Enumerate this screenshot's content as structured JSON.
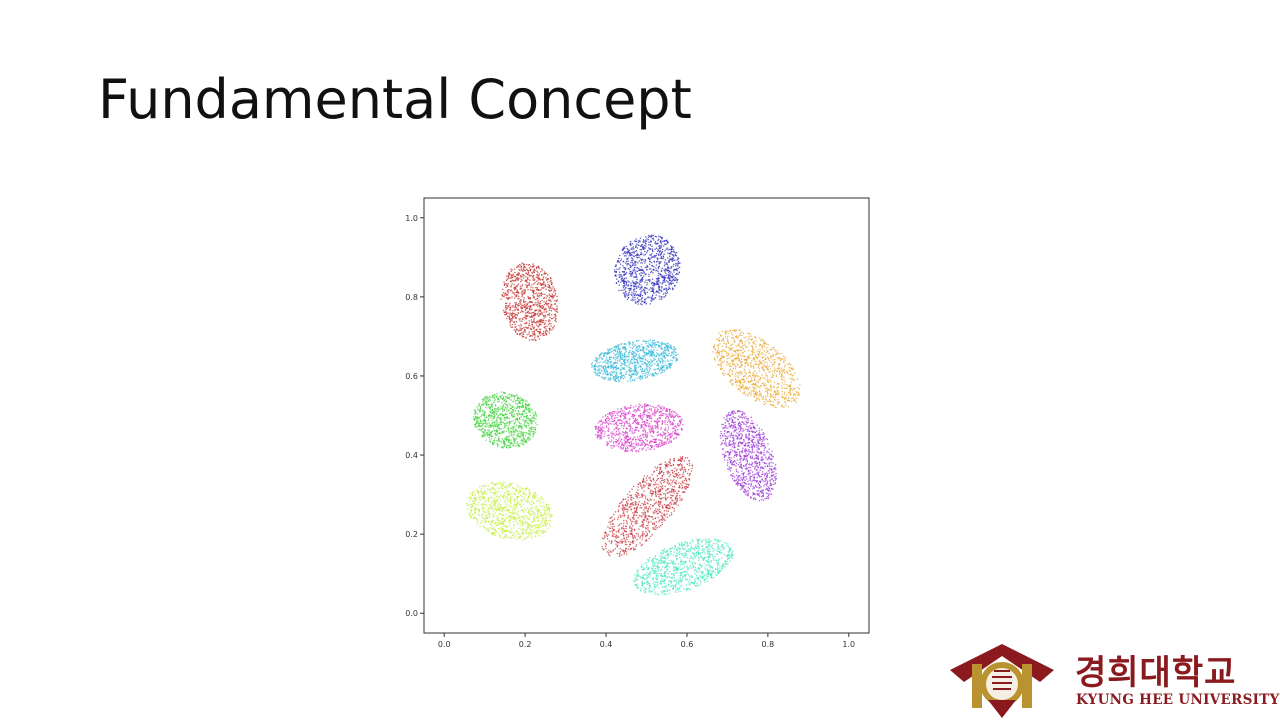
{
  "slide": {
    "title": "Fundamental Concept"
  },
  "chart_data": {
    "type": "scatter",
    "title": "",
    "xlabel": "",
    "ylabel": "",
    "xlim": [
      -0.05,
      1.05
    ],
    "ylim": [
      -0.05,
      1.05
    ],
    "x_ticks": [
      "0.0",
      "0.2",
      "0.4",
      "0.6",
      "0.8",
      "1.0"
    ],
    "y_ticks": [
      "0.0",
      "0.2",
      "0.4",
      "0.6",
      "0.8",
      "1.0"
    ],
    "grid": false,
    "legend": "none",
    "clusters": [
      {
        "color": "#2b2bb8",
        "center": [
          0.5,
          0.87
        ],
        "spread": [
          0.08,
          0.09
        ],
        "angle": -25
      },
      {
        "color": "#c0302c",
        "center": [
          0.21,
          0.79
        ],
        "spread": [
          0.07,
          0.1
        ],
        "angle": 10
      },
      {
        "color": "#e8a52c",
        "center": [
          0.77,
          0.62
        ],
        "spread": [
          0.13,
          0.07
        ],
        "angle": -40
      },
      {
        "color": "#35b8d8",
        "center": [
          0.47,
          0.64
        ],
        "spread": [
          0.11,
          0.05
        ],
        "angle": 10
      },
      {
        "color": "#42d23c",
        "center": [
          0.15,
          0.49
        ],
        "spread": [
          0.08,
          0.07
        ],
        "angle": -20
      },
      {
        "color": "#d83cc8",
        "center": [
          0.48,
          0.47
        ],
        "spread": [
          0.11,
          0.06
        ],
        "angle": 5
      },
      {
        "color": "#9a32d6",
        "center": [
          0.75,
          0.4
        ],
        "spread": [
          0.06,
          0.12
        ],
        "angle": 20
      },
      {
        "color": "#c4ec3a",
        "center": [
          0.16,
          0.26
        ],
        "spread": [
          0.11,
          0.07
        ],
        "angle": -15
      },
      {
        "color": "#c4323a",
        "center": [
          0.5,
          0.27
        ],
        "spread": [
          0.06,
          0.16
        ],
        "angle": -40
      },
      {
        "color": "#3ce8b8",
        "center": [
          0.59,
          0.12
        ],
        "spread": [
          0.13,
          0.06
        ],
        "angle": 20
      }
    ]
  },
  "logo": {
    "name_ko": "경희대학교",
    "name_en": "KYUNG HEE UNIVERSITY",
    "color": "#8b1a1f"
  }
}
